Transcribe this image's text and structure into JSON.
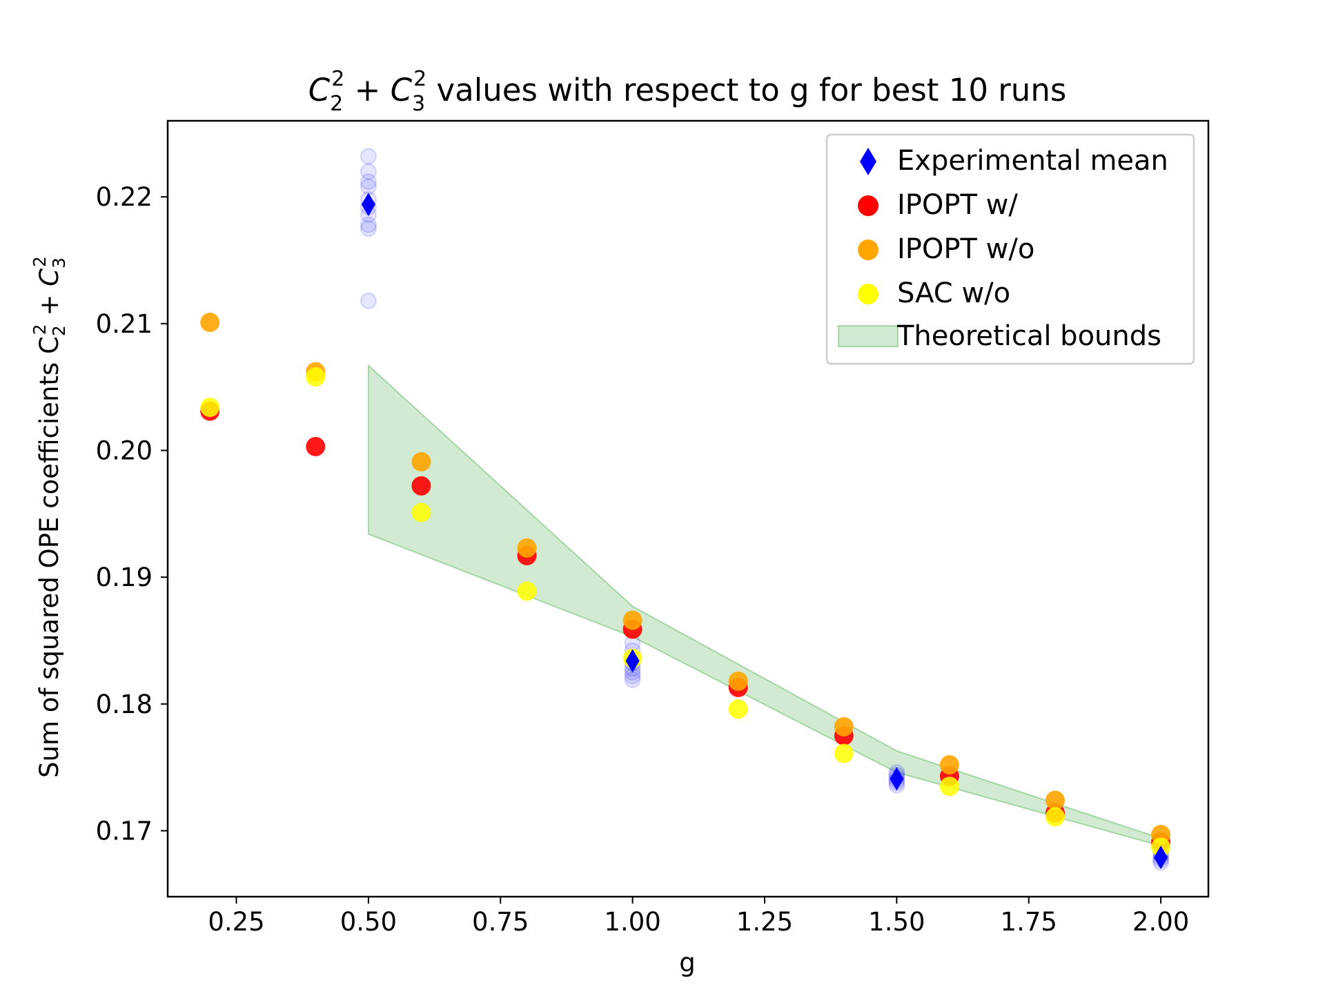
{
  "chart_data": {
    "type": "scatter",
    "title": {
      "main": "C",
      "title_rest": "values with respect to g for best 10 runs"
    },
    "xlabel": "g",
    "ylabel": "Sum of squared OPE coefficients C",
    "xlim": [
      0.12,
      2.09
    ],
    "ylim": [
      0.1648,
      0.226
    ],
    "xticks": [
      0.25,
      0.5,
      0.75,
      1.0,
      1.25,
      1.5,
      1.75,
      2.0
    ],
    "xtick_labels": [
      "0.25",
      "0.50",
      "0.75",
      "1.00",
      "1.25",
      "1.50",
      "1.75",
      "2.00"
    ],
    "yticks": [
      0.17,
      0.18,
      0.19,
      0.2,
      0.21,
      0.22
    ],
    "ytick_labels": [
      "0.17",
      "0.18",
      "0.19",
      "0.20",
      "0.21",
      "0.22"
    ],
    "grid": false,
    "legend_position": "top-right",
    "theoretical_bounds": {
      "name": "Theoretical bounds",
      "color": "#2ca02c",
      "x": [
        0.5,
        1.0,
        1.5,
        2.0
      ],
      "upper": [
        0.2067,
        0.1877,
        0.1763,
        0.1694
      ],
      "lower": [
        0.1934,
        0.1853,
        0.1746,
        0.1688
      ]
    },
    "experimental_runs": {
      "color": "#0000ff",
      "points": [
        {
          "x": 0.5,
          "y": 0.2232
        },
        {
          "x": 0.5,
          "y": 0.222
        },
        {
          "x": 0.5,
          "y": 0.2212
        },
        {
          "x": 0.5,
          "y": 0.2208
        },
        {
          "x": 0.5,
          "y": 0.2198
        },
        {
          "x": 0.5,
          "y": 0.2192
        },
        {
          "x": 0.5,
          "y": 0.2186
        },
        {
          "x": 0.5,
          "y": 0.2178
        },
        {
          "x": 0.5,
          "y": 0.2175
        },
        {
          "x": 0.5,
          "y": 0.2118
        },
        {
          "x": 1.0,
          "y": 0.1848
        },
        {
          "x": 1.0,
          "y": 0.1842
        },
        {
          "x": 1.0,
          "y": 0.1836
        },
        {
          "x": 1.0,
          "y": 0.1832
        },
        {
          "x": 1.0,
          "y": 0.1828
        },
        {
          "x": 1.0,
          "y": 0.1825
        },
        {
          "x": 1.0,
          "y": 0.1822
        },
        {
          "x": 1.0,
          "y": 0.1819
        },
        {
          "x": 1.5,
          "y": 0.1746
        },
        {
          "x": 1.5,
          "y": 0.1744
        },
        {
          "x": 1.5,
          "y": 0.1742
        },
        {
          "x": 1.5,
          "y": 0.174
        },
        {
          "x": 1.5,
          "y": 0.1738
        },
        {
          "x": 1.5,
          "y": 0.1736
        },
        {
          "x": 2.0,
          "y": 0.1684
        },
        {
          "x": 2.0,
          "y": 0.1681
        },
        {
          "x": 2.0,
          "y": 0.1679
        },
        {
          "x": 2.0,
          "y": 0.1677
        },
        {
          "x": 2.0,
          "y": 0.1675
        }
      ]
    },
    "series": [
      {
        "name": "Experimental mean",
        "marker": "diamond",
        "color": "#0000ff",
        "x": [
          0.5,
          1.0,
          1.5,
          2.0
        ],
        "y": [
          0.2194,
          0.1834,
          0.1741,
          0.1679
        ]
      },
      {
        "name": "IPOPT w/",
        "marker": "circle",
        "color": "#ff0000",
        "x": [
          0.2,
          0.4,
          0.6,
          0.8,
          1.0,
          1.2,
          1.4,
          1.6,
          1.8,
          2.0
        ],
        "y": [
          0.2031,
          0.2003,
          0.1972,
          0.1917,
          0.1859,
          0.1813,
          0.1775,
          0.1743,
          0.1714,
          0.1691
        ]
      },
      {
        "name": "IPOPT w/o",
        "marker": "circle",
        "color": "#ffa500",
        "x": [
          0.2,
          0.4,
          0.6,
          0.8,
          1.0,
          1.2,
          1.4,
          1.6,
          1.8,
          2.0
        ],
        "y": [
          0.2101,
          0.2062,
          0.1991,
          0.1923,
          0.1866,
          0.1818,
          0.1782,
          0.1752,
          0.1724,
          0.1697
        ]
      },
      {
        "name": "SAC w/o",
        "marker": "circle",
        "color": "#ffff00",
        "x": [
          0.2,
          0.4,
          0.6,
          0.8,
          1.0,
          1.2,
          1.4,
          1.6,
          1.8,
          2.0
        ],
        "y": [
          0.2034,
          0.2058,
          0.1951,
          0.1889,
          0.1836,
          0.1796,
          0.1761,
          0.1735,
          0.1711,
          0.1687
        ]
      }
    ]
  }
}
